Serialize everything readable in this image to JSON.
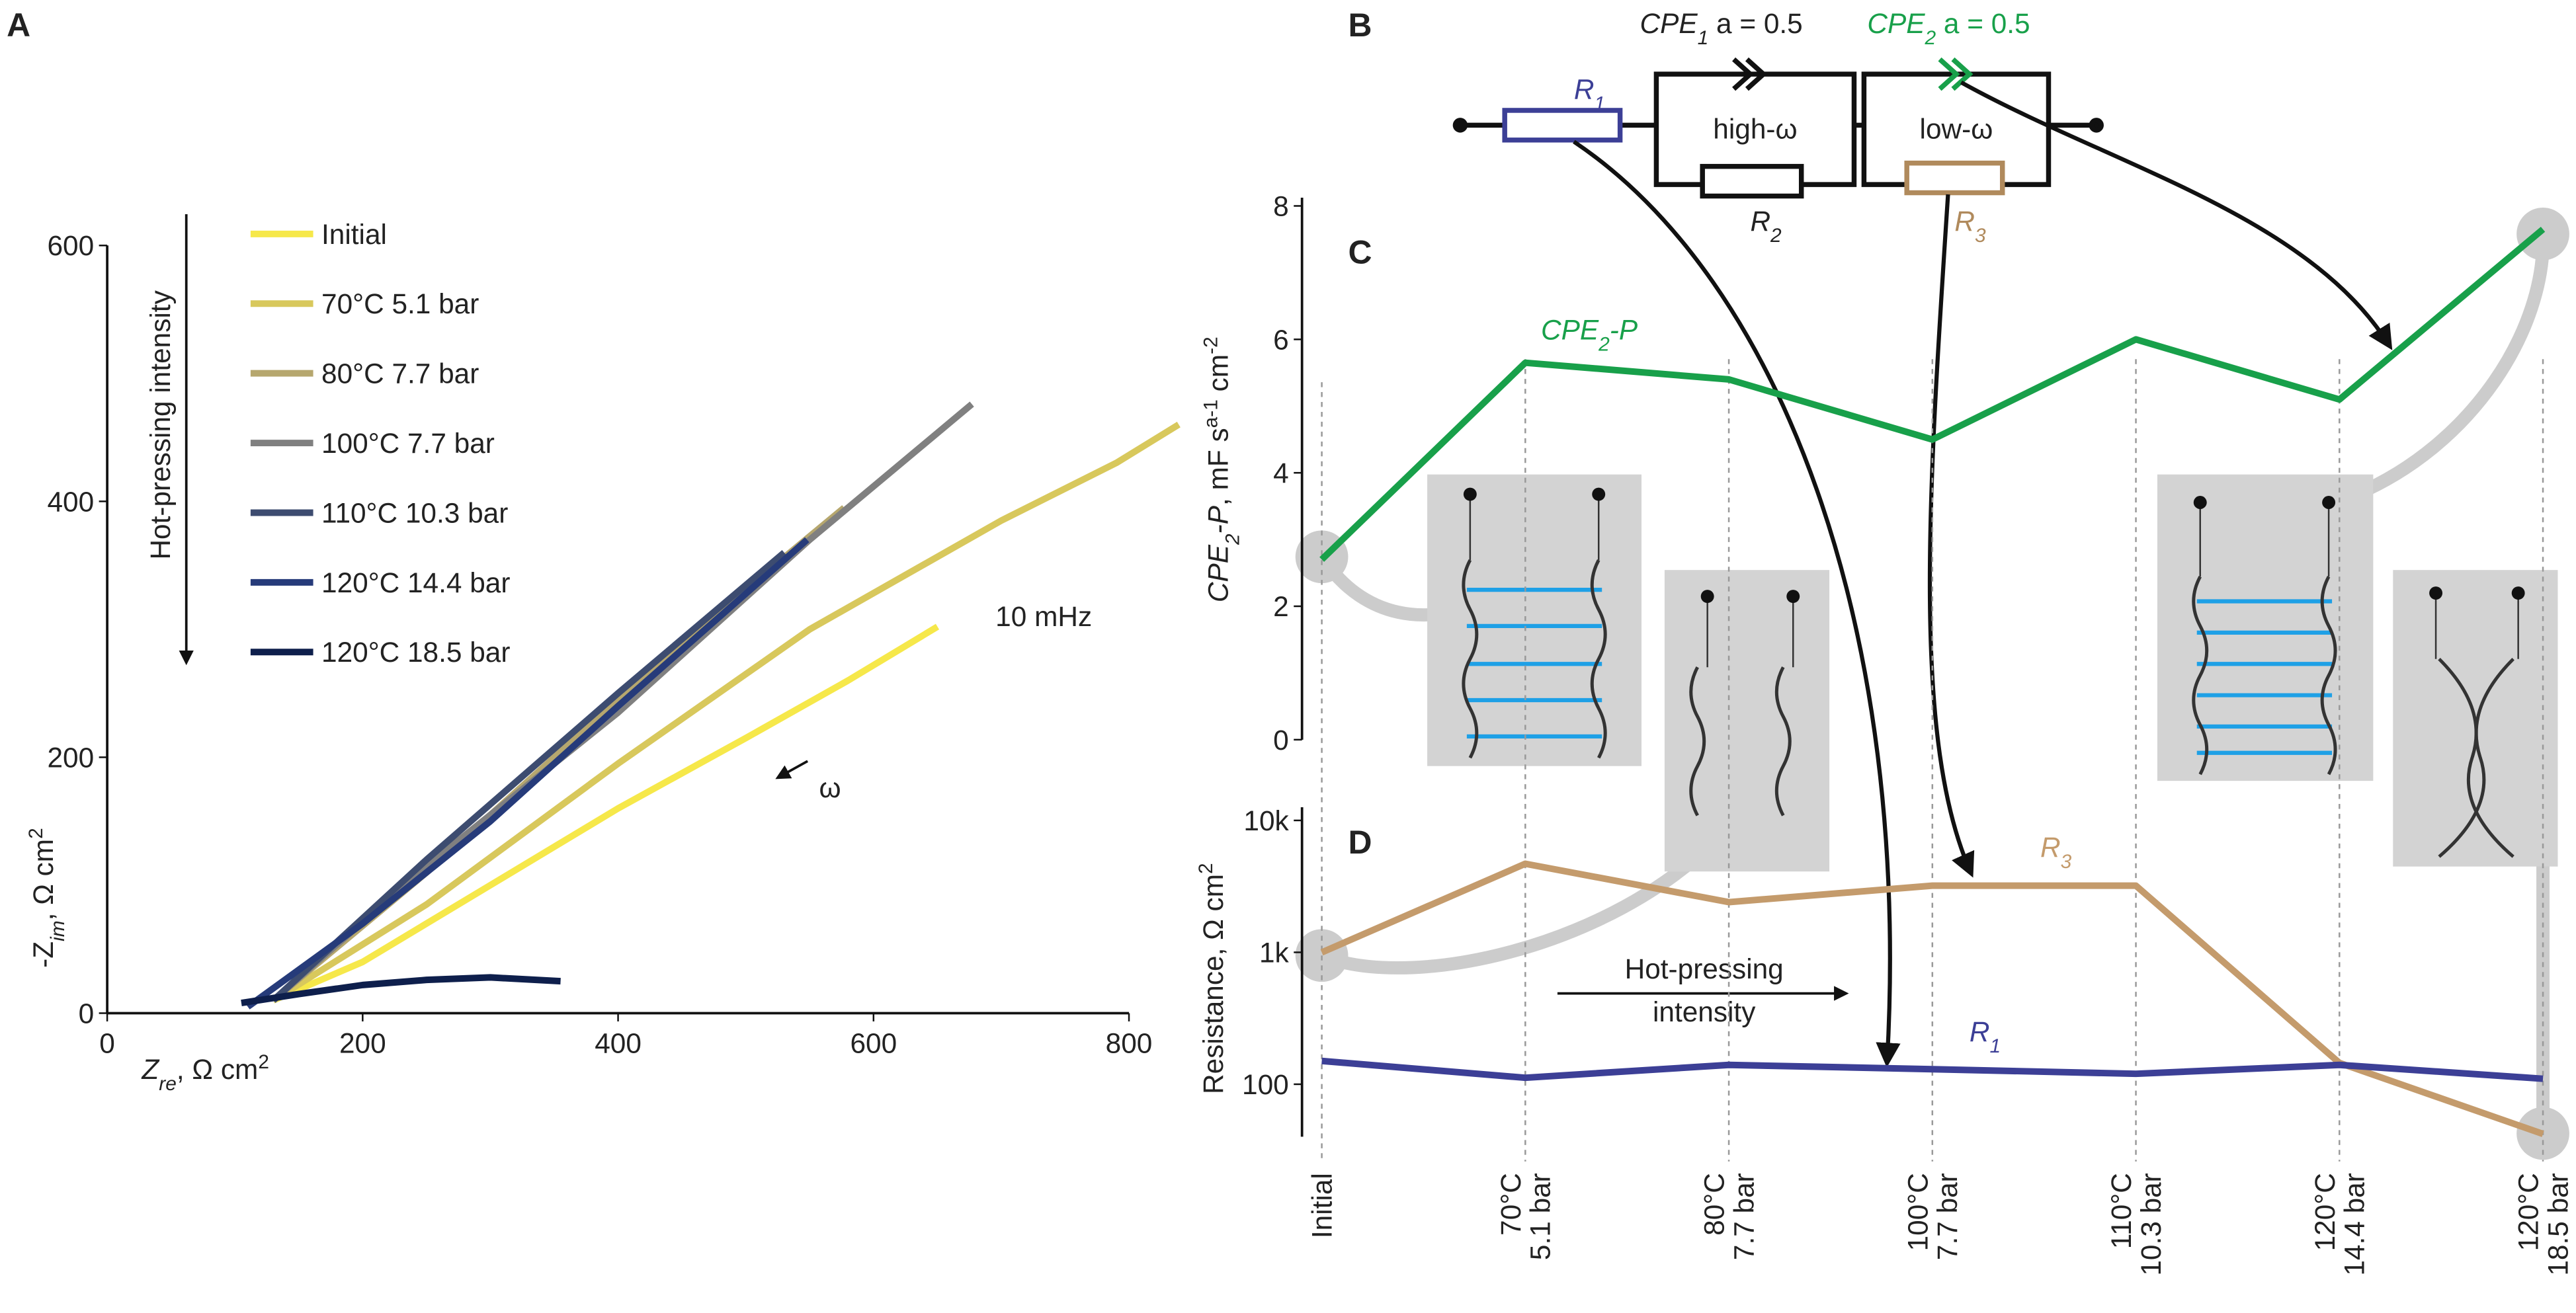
{
  "chart_data": [
    {
      "type": "line",
      "label": "A",
      "x_label": [
        "Z",
        "re",
        ", Ω cm",
        "2"
      ],
      "y_label": [
        "-Z",
        "im",
        ", Ω  cm",
        "2"
      ],
      "xlim": [
        0,
        800
      ],
      "xticks": [
        0,
        200,
        400,
        600,
        800
      ],
      "ylim": [
        0,
        600
      ],
      "yticks": [
        0,
        200,
        400,
        600
      ],
      "annotations": [
        "Hot-pressing intensity",
        "10 mHz",
        "ω"
      ],
      "series": [
        {
          "name": "Initial",
          "color": "#f6e84a",
          "x": [
            130,
            200,
            300,
            400,
            500,
            580,
            650
          ],
          "values": [
            10,
            40,
            100,
            160,
            215,
            260,
            302
          ]
        },
        {
          "name": "70°C 5.1 bar",
          "color": "#d8c85c",
          "x": [
            130,
            250,
            400,
            550,
            700,
            790,
            839
          ],
          "values": [
            10,
            85,
            195,
            300,
            385,
            430,
            460
          ]
        },
        {
          "name": "80°C 7.7 bar",
          "color": "#b6a76e",
          "x": [
            130,
            250,
            350,
            450,
            577
          ],
          "values": [
            10,
            110,
            200,
            290,
            395
          ]
        },
        {
          "name": "100°C 7.7 bar",
          "color": "#808080",
          "x": [
            130,
            250,
            400,
            550,
            677
          ],
          "values": [
            10,
            115,
            235,
            370,
            476
          ]
        },
        {
          "name": "110°C 10.3 bar",
          "color": "#3d4c70",
          "x": [
            130,
            250,
            400,
            530
          ],
          "values": [
            10,
            120,
            250,
            360
          ]
        },
        {
          "name": "120°C 14.4 bar",
          "color": "#263b7a",
          "x": [
            110,
            200,
            300,
            400,
            548
          ],
          "values": [
            5,
            70,
            150,
            240,
            370
          ]
        },
        {
          "name": "120°C 18.5 bar",
          "color": "#0e1f4c",
          "x": [
            105,
            150,
            200,
            250,
            300,
            355
          ],
          "values": [
            8,
            15,
            22,
            26,
            28,
            25
          ]
        }
      ]
    },
    {
      "type": "line",
      "label": "C",
      "y_label": [
        "CPE",
        "2",
        "-P",
        ", mF s",
        "a-1",
        " cm",
        "-2"
      ],
      "ylim": [
        0,
        8
      ],
      "yticks": [
        0,
        2,
        4,
        6,
        8
      ],
      "series": [
        {
          "name": [
            "CPE",
            "2",
            "-P"
          ],
          "color": "#18a04a",
          "values": [
            2.7,
            5.65,
            5.4,
            4.5,
            6.0,
            5.1,
            7.65
          ]
        }
      ]
    },
    {
      "type": "line",
      "label": "D",
      "log_scale": true,
      "y_label": [
        "Resistance, Ω cm",
        "2"
      ],
      "categories": [
        [
          "Initial"
        ],
        [
          "70°C",
          "5.1 bar"
        ],
        [
          "80°C",
          "7.7 bar"
        ],
        [
          "100°C",
          "7.7 bar"
        ],
        [
          "110°C",
          "10.3 bar"
        ],
        [
          "120°C",
          "14.4 bar"
        ],
        [
          "120°C",
          "18.5 bar"
        ]
      ],
      "ylim": [
        40,
        10000
      ],
      "yticks": [
        {
          "value": 100,
          "label": "100"
        },
        {
          "value": 1000,
          "label": "1k"
        },
        {
          "value": 10000,
          "label": "10k"
        }
      ],
      "annotations": [
        [
          "Hot-pressing",
          "intensity"
        ]
      ],
      "series": [
        {
          "name": [
            "R",
            "3"
          ],
          "color": "#c49b6c",
          "values": [
            1000,
            4700,
            2400,
            3200,
            3200,
            145,
            42
          ]
        },
        {
          "name": [
            "R",
            "1"
          ],
          "color": "#3c3f96",
          "values": [
            150,
            112,
            140,
            130,
            120,
            140,
            110
          ]
        }
      ]
    }
  ],
  "circuit": {
    "label": "B",
    "cpe1": [
      "CPE",
      "1",
      " a = 0.5"
    ],
    "cpe2": [
      "CPE",
      "2",
      " a = 0.5"
    ],
    "r1": [
      "R",
      "1"
    ],
    "r2": [
      "R",
      "2"
    ],
    "r3": [
      "R",
      "3"
    ],
    "high": "high-ω",
    "low": "low-ω"
  }
}
